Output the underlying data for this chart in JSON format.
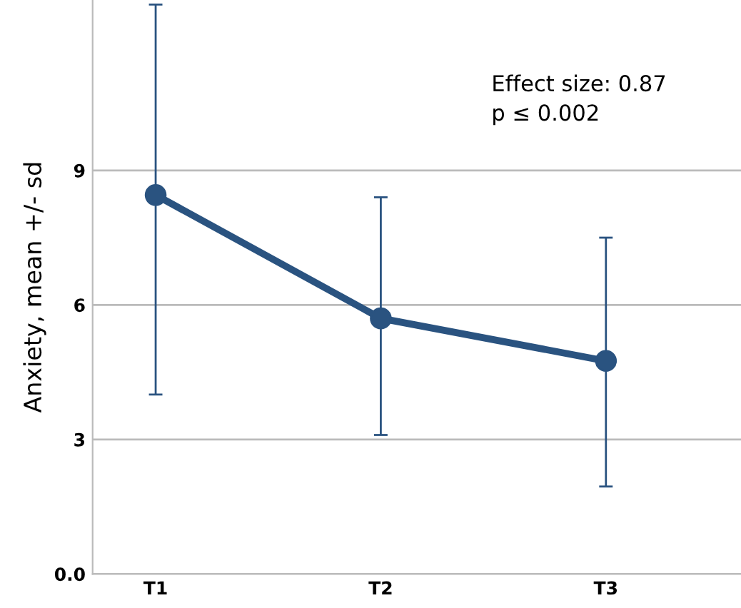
{
  "chart_data": {
    "type": "line",
    "ylabel": "Anxiety, mean +/- sd",
    "categories": [
      "T1",
      "T2",
      "T3"
    ],
    "values": [
      8.45,
      5.7,
      4.75
    ],
    "errors": [
      [
        4.0,
        12.7
      ],
      [
        3.1,
        8.4
      ],
      [
        1.95,
        7.5
      ]
    ],
    "color": "#2a5380",
    "marker": "circle",
    "line_style": "solid",
    "ylim": [
      0,
      12.8
    ],
    "yticks": [
      {
        "value": 0,
        "label": "0.0"
      },
      3,
      6,
      9
    ],
    "grid": "y",
    "annotations": [
      "Effect size: 0.87\np ≤ 0.002"
    ]
  }
}
